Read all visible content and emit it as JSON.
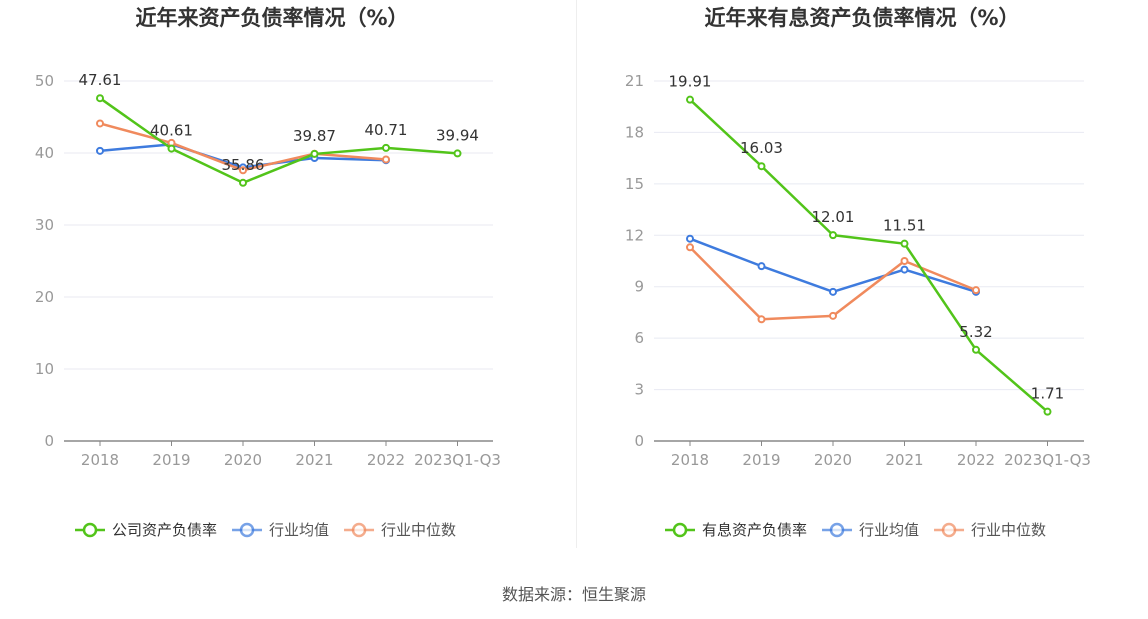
{
  "source": "数据来源：恒生聚源",
  "chart_data": [
    {
      "type": "line",
      "title": "近年来资产负债率情况（%）",
      "categories": [
        "2018",
        "2019",
        "2020",
        "2021",
        "2022",
        "2023Q1-Q3"
      ],
      "ylim": [
        0,
        50
      ],
      "yticks": [
        0,
        10,
        20,
        30,
        40,
        50
      ],
      "legend_position": "bottom-center",
      "series": [
        {
          "name": "公司资产负债率",
          "color": "#52c41a",
          "values": [
            47.61,
            40.61,
            35.86,
            39.87,
            40.71,
            39.94
          ],
          "labels": [
            "47.61",
            "40.61",
            "35.86",
            "39.87",
            "40.71",
            "39.94"
          ]
        },
        {
          "name": "行业均值",
          "color": "#3e7bde",
          "values": [
            40.3,
            41.2,
            38.0,
            39.3,
            39.0,
            null
          ]
        },
        {
          "name": "行业中位数",
          "color": "#f08a5d",
          "values": [
            44.1,
            41.4,
            37.6,
            39.9,
            39.1,
            null
          ]
        }
      ]
    },
    {
      "type": "line",
      "title": "近年来有息资产负债率情况（%）",
      "categories": [
        "2018",
        "2019",
        "2020",
        "2021",
        "2022",
        "2023Q1-Q3"
      ],
      "ylim": [
        0,
        21
      ],
      "yticks": [
        0,
        3,
        6,
        9,
        12,
        15,
        18,
        21
      ],
      "legend_position": "bottom-center",
      "series": [
        {
          "name": "有息资产负债率",
          "color": "#52c41a",
          "values": [
            19.91,
            16.03,
            12.01,
            11.51,
            5.32,
            1.71
          ],
          "labels": [
            "19.91",
            "16.03",
            "12.01",
            "11.51",
            "5.32",
            "1.71"
          ]
        },
        {
          "name": "行业均值",
          "color": "#3e7bde",
          "values": [
            11.8,
            10.2,
            8.7,
            10.0,
            8.7,
            null
          ]
        },
        {
          "name": "行业中位数",
          "color": "#f08a5d",
          "values": [
            11.3,
            7.1,
            7.3,
            10.5,
            8.8,
            null
          ]
        }
      ]
    }
  ]
}
